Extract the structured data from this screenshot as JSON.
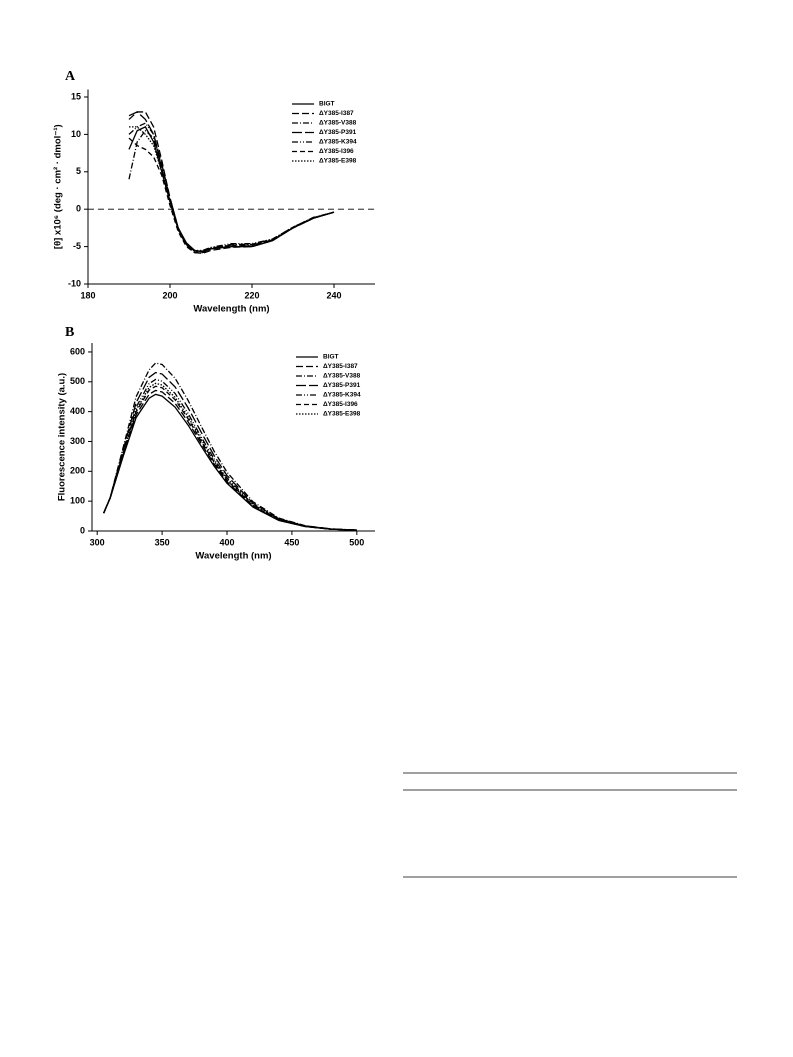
{
  "chart_data": [
    {
      "type": "line",
      "panel_label": "A",
      "x_label": "Wavelength (nm)",
      "y_label": "[θ] x10⁶ (deg · cm² · dmol⁻¹)",
      "x": [
        190,
        192,
        194,
        196,
        198,
        200,
        202,
        204,
        206,
        208,
        210,
        215,
        220,
        225,
        230,
        235,
        240
      ],
      "xlim": [
        180,
        250
      ],
      "xticks": [
        180,
        200,
        220,
        240
      ],
      "ylim": [
        -10,
        16
      ],
      "yticks": [
        -10,
        -5,
        0,
        5,
        10,
        15
      ],
      "zero_line": true,
      "legend": "upper right",
      "series": [
        {
          "name": "BlGT",
          "color": "#000",
          "dash": "none",
          "values": [
            8,
            10.5,
            11,
            9,
            5,
            1,
            -2.5,
            -4.5,
            -5.5,
            -5.7,
            -5.3,
            -5,
            -5,
            -4.2,
            -2.5,
            -1.2,
            -0.4
          ]
        },
        {
          "name": "ΔY385-I387",
          "color": "#000",
          "dash": "7,3",
          "values": [
            12,
            13,
            13,
            11,
            6.5,
            1.5,
            -2.5,
            -4.8,
            -5.8,
            -5.9,
            -5.5,
            -5.1,
            -5,
            -4.2,
            -2.5,
            -1.2,
            -0.4
          ]
        },
        {
          "name": "ΔY385-V388",
          "color": "#000",
          "dash": "6,2,1,2",
          "values": [
            4,
            9,
            10.5,
            9.5,
            5.5,
            1,
            -2.8,
            -4.8,
            -5.6,
            -5.6,
            -5.2,
            -4.7,
            -4.7,
            -4,
            -2.4,
            -1.1,
            -0.4
          ]
        },
        {
          "name": "ΔY385-P391",
          "color": "#000",
          "dash": "10,3",
          "values": [
            12.5,
            13,
            12,
            10,
            6,
            1.5,
            -2.5,
            -4.7,
            -5.6,
            -5.6,
            -5.2,
            -4.8,
            -4.8,
            -4.1,
            -2.5,
            -1.2,
            -0.4
          ]
        },
        {
          "name": "ΔY385-K394",
          "color": "#000",
          "dash": "6,2,1,2,1,2",
          "values": [
            10,
            11,
            11.5,
            10,
            5.5,
            1,
            -2.7,
            -4.7,
            -5.5,
            -5.5,
            -5.1,
            -4.6,
            -4.6,
            -4,
            -2.4,
            -1.1,
            -0.4
          ]
        },
        {
          "name": "ΔY385-I396",
          "color": "#000",
          "dash": "5,3",
          "values": [
            9.5,
            8.5,
            8,
            7,
            4.5,
            0.5,
            -3,
            -5,
            -5.8,
            -5.8,
            -5.3,
            -4.9,
            -4.9,
            -4.1,
            -2.5,
            -1.2,
            -0.4
          ]
        },
        {
          "name": "ΔY385-E398",
          "color": "#000",
          "dash": "1.5,1.5",
          "values": [
            11,
            11,
            10,
            8.5,
            5,
            1,
            -2.7,
            -4.7,
            -5.6,
            -5.7,
            -5.3,
            -5,
            -5,
            -4.2,
            -2.5,
            -1.2,
            -0.4
          ]
        }
      ]
    },
    {
      "type": "line",
      "panel_label": "B",
      "x_label": "Wavelength (nm)",
      "y_label": "Fluorescence intensity (a.u.)",
      "x": [
        305,
        310,
        320,
        330,
        340,
        345,
        350,
        360,
        370,
        380,
        390,
        400,
        420,
        440,
        460,
        480,
        500
      ],
      "xlim": [
        296,
        514
      ],
      "xticks": [
        300,
        350,
        400,
        450,
        500
      ],
      "ylim": [
        0,
        630
      ],
      "yticks": [
        0,
        100,
        200,
        300,
        400,
        500,
        600
      ],
      "zero_line": false,
      "legend": "upper right",
      "series": [
        {
          "name": "BlGT",
          "color": "#000",
          "dash": "none",
          "values": [
            60,
            110,
            250,
            380,
            445,
            458,
            452,
            415,
            355,
            285,
            218,
            160,
            80,
            35,
            15,
            6,
            3
          ]
        },
        {
          "name": "ΔY385-I387",
          "color": "#000",
          "dash": "7,3",
          "values": [
            60,
            110,
            255,
            390,
            458,
            471,
            466,
            428,
            366,
            294,
            225,
            165,
            82,
            36,
            15,
            6,
            3
          ]
        },
        {
          "name": "ΔY385-V388",
          "color": "#000",
          "dash": "6,2,1,2",
          "values": [
            60,
            112,
            280,
            450,
            540,
            563,
            558,
            512,
            438,
            352,
            268,
            197,
            98,
            43,
            18,
            7,
            3
          ]
        },
        {
          "name": "ΔY385-P391",
          "color": "#000",
          "dash": "10,3",
          "values": [
            60,
            112,
            272,
            430,
            515,
            531,
            526,
            483,
            413,
            332,
            253,
            186,
            93,
            41,
            17,
            7,
            3
          ]
        },
        {
          "name": "ΔY385-K394",
          "color": "#000",
          "dash": "6,2,1,2,1,2",
          "values": [
            60,
            111,
            265,
            415,
            494,
            508,
            502,
            461,
            394,
            316,
            242,
            178,
            89,
            39,
            17,
            7,
            3
          ]
        },
        {
          "name": "ΔY385-I396",
          "color": "#000",
          "dash": "5,3",
          "values": [
            60,
            110,
            258,
            400,
            472,
            485,
            480,
            440,
            376,
            302,
            231,
            170,
            85,
            37,
            16,
            6,
            3
          ]
        },
        {
          "name": "ΔY385-E398",
          "color": "#000",
          "dash": "1.5,1.5",
          "values": [
            60,
            111,
            262,
            405,
            481,
            495,
            489,
            448,
            383,
            308,
            235,
            173,
            86,
            38,
            16,
            6,
            3
          ]
        }
      ]
    }
  ]
}
